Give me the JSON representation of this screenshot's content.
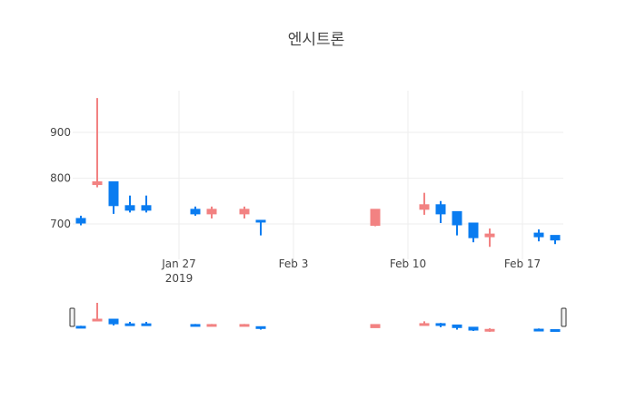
{
  "chart_data": {
    "type": "candlestick",
    "title": "엔시트론",
    "xlabel": "",
    "ylabel": "",
    "ylim": [
      640,
      985
    ],
    "y_ticks": [
      700,
      800,
      900
    ],
    "x_ticks": [
      {
        "date": "2019-01-27",
        "label": "Jan 27",
        "sublabel": "2019"
      },
      {
        "date": "2019-02-03",
        "label": "Feb 3",
        "sublabel": ""
      },
      {
        "date": "2019-02-10",
        "label": "Feb 10",
        "sublabel": ""
      },
      {
        "date": "2019-02-17",
        "label": "Feb 17",
        "sublabel": ""
      }
    ],
    "grid": true,
    "legend": false,
    "rangeslider": true,
    "colors": {
      "increasing": "#f28282",
      "decreasing": "#0a7cf0",
      "grid": "#eeeeee",
      "text": "#444444"
    },
    "series": [
      {
        "date": "2019-01-21",
        "open": 712,
        "high": 718,
        "low": 697,
        "close": 702
      },
      {
        "date": "2019-01-22",
        "open": 786,
        "high": 975,
        "low": 780,
        "close": 792
      },
      {
        "date": "2019-01-23",
        "open": 792,
        "high": 792,
        "low": 722,
        "close": 740
      },
      {
        "date": "2019-01-24",
        "open": 740,
        "high": 762,
        "low": 725,
        "close": 730
      },
      {
        "date": "2019-01-25",
        "open": 740,
        "high": 762,
        "low": 725,
        "close": 730
      },
      {
        "date": "2019-01-28",
        "open": 732,
        "high": 738,
        "low": 718,
        "close": 722
      },
      {
        "date": "2019-01-29",
        "open": 722,
        "high": 738,
        "low": 712,
        "close": 732
      },
      {
        "date": "2019-01-31",
        "open": 722,
        "high": 738,
        "low": 712,
        "close": 732
      },
      {
        "date": "2019-02-01",
        "open": 708,
        "high": 708,
        "low": 675,
        "close": 705
      },
      {
        "date": "2019-02-08",
        "open": 697,
        "high": 732,
        "low": 695,
        "close": 732
      },
      {
        "date": "2019-02-11",
        "open": 732,
        "high": 768,
        "low": 720,
        "close": 742
      },
      {
        "date": "2019-02-12",
        "open": 742,
        "high": 750,
        "low": 702,
        "close": 722
      },
      {
        "date": "2019-02-13",
        "open": 727,
        "high": 727,
        "low": 675,
        "close": 698
      },
      {
        "date": "2019-02-14",
        "open": 702,
        "high": 702,
        "low": 660,
        "close": 670
      },
      {
        "date": "2019-02-15",
        "open": 672,
        "high": 690,
        "low": 650,
        "close": 678
      },
      {
        "date": "2019-02-18",
        "open": 680,
        "high": 688,
        "low": 662,
        "close": 672
      },
      {
        "date": "2019-02-19",
        "open": 675,
        "high": 675,
        "low": 656,
        "close": 665
      }
    ]
  }
}
